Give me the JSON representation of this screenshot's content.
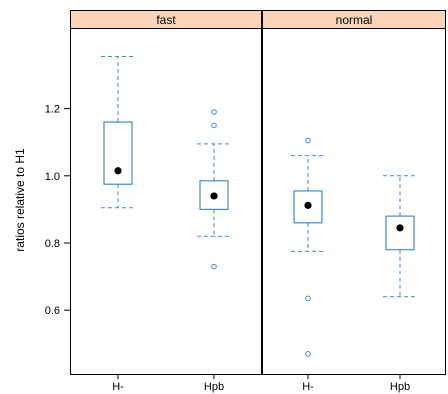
{
  "chart_data": {
    "type": "boxplot",
    "ylabel": "ratios relative to H1",
    "xlabel": "",
    "ylim": [
      0.41,
      1.44
    ],
    "yticks": [
      0.6,
      0.8,
      1.0,
      1.2
    ],
    "ytick_labels": [
      "0.6",
      "0.8",
      "1.0",
      "1.2"
    ],
    "categories": [
      "H-",
      "Hpb"
    ],
    "grid": false,
    "colors": {
      "box": "#3a8fd1",
      "strip": "#fbd5b5",
      "median_dot": "#000000",
      "frame": "#000000"
    },
    "panels": [
      {
        "strip_label": "fast",
        "boxes": [
          {
            "category": "H-",
            "whisker_low": 0.905,
            "q1": 0.975,
            "median": 1.015,
            "q3": 1.16,
            "whisker_high": 1.355,
            "outliers": []
          },
          {
            "category": "Hpb",
            "whisker_low": 0.82,
            "q1": 0.9,
            "median": 0.94,
            "q3": 0.985,
            "whisker_high": 1.095,
            "outliers": [
              1.19,
              1.15,
              0.73
            ]
          }
        ]
      },
      {
        "strip_label": "normal",
        "boxes": [
          {
            "category": "H-",
            "whisker_low": 0.775,
            "q1": 0.86,
            "median": 0.912,
            "q3": 0.955,
            "whisker_high": 1.06,
            "outliers": [
              1.105,
              0.635,
              0.47
            ]
          },
          {
            "category": "Hpb",
            "whisker_low": 0.64,
            "q1": 0.78,
            "median": 0.845,
            "q3": 0.88,
            "whisker_high": 1.0,
            "outliers": []
          }
        ]
      }
    ]
  }
}
